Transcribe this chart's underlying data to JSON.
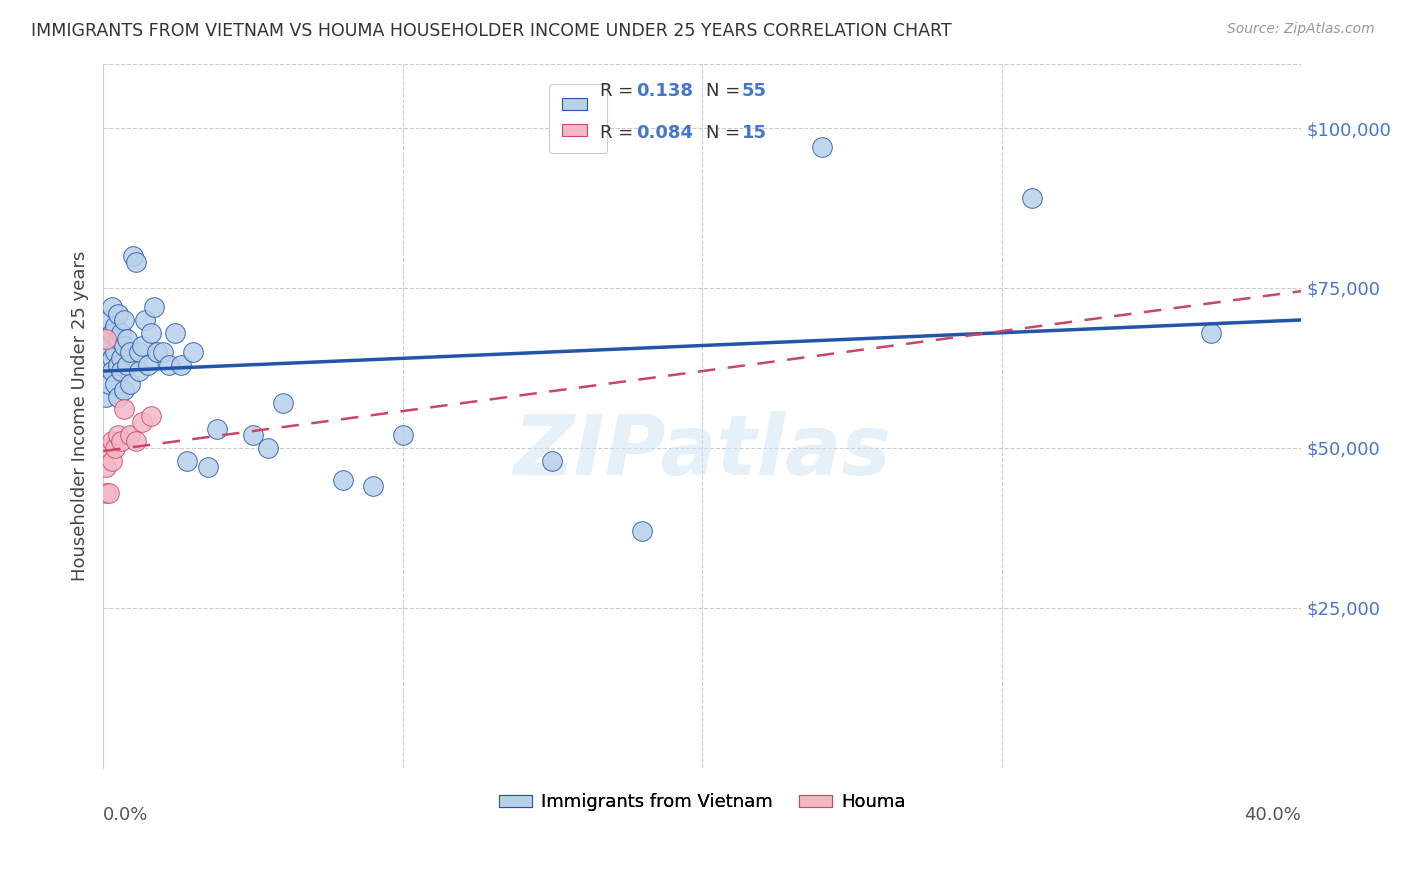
{
  "title": "IMMIGRANTS FROM VIETNAM VS HOUMA HOUSEHOLDER INCOME UNDER 25 YEARS CORRELATION CHART",
  "source": "Source: ZipAtlas.com",
  "ylabel": "Householder Income Under 25 years",
  "xlim": [
    0.0,
    0.4
  ],
  "ylim": [
    0,
    110000
  ],
  "yticks": [
    25000,
    50000,
    75000,
    100000
  ],
  "ytick_labels": [
    "$25,000",
    "$50,000",
    "$75,000",
    "$100,000"
  ],
  "legend_label1": "Immigrants from Vietnam",
  "legend_label2": "Houma",
  "color_blue": "#b8d0ea",
  "color_pink": "#f2b8c6",
  "line_blue": "#2255aa",
  "line_pink": "#cc4466",
  "watermark": "ZIPatlas",
  "axis_color": "#4477cc",
  "blue_scatter_x": [
    0.001,
    0.001,
    0.002,
    0.002,
    0.002,
    0.003,
    0.003,
    0.003,
    0.003,
    0.004,
    0.004,
    0.004,
    0.005,
    0.005,
    0.005,
    0.005,
    0.006,
    0.006,
    0.006,
    0.007,
    0.007,
    0.007,
    0.008,
    0.008,
    0.009,
    0.009,
    0.01,
    0.011,
    0.012,
    0.012,
    0.013,
    0.014,
    0.015,
    0.016,
    0.017,
    0.018,
    0.02,
    0.022,
    0.024,
    0.026,
    0.028,
    0.03,
    0.035,
    0.038,
    0.05,
    0.055,
    0.06,
    0.08,
    0.09,
    0.1,
    0.15,
    0.18,
    0.24,
    0.31,
    0.37
  ],
  "blue_scatter_y": [
    63000,
    58000,
    66000,
    70000,
    60000,
    64000,
    68000,
    72000,
    62000,
    65000,
    69000,
    60000,
    63000,
    67000,
    71000,
    58000,
    64000,
    68000,
    62000,
    66000,
    70000,
    59000,
    63000,
    67000,
    65000,
    60000,
    80000,
    79000,
    65000,
    62000,
    66000,
    70000,
    63000,
    68000,
    72000,
    65000,
    65000,
    63000,
    68000,
    63000,
    48000,
    65000,
    47000,
    53000,
    52000,
    50000,
    57000,
    45000,
    44000,
    52000,
    48000,
    37000,
    97000,
    89000,
    68000
  ],
  "pink_scatter_x": [
    0.001,
    0.001,
    0.001,
    0.002,
    0.002,
    0.003,
    0.003,
    0.004,
    0.005,
    0.006,
    0.007,
    0.009,
    0.011,
    0.013,
    0.016
  ],
  "pink_scatter_y": [
    47000,
    43000,
    67000,
    50000,
    43000,
    48000,
    51000,
    50000,
    52000,
    51000,
    56000,
    52000,
    51000,
    54000,
    55000
  ],
  "blue_line_x0": 0.0,
  "blue_line_y0": 62000,
  "blue_line_x1": 0.4,
  "blue_line_y1": 70000,
  "pink_line_x0": 0.0,
  "pink_line_y0": 49500,
  "pink_line_x1": 0.4,
  "pink_line_y1": 74500
}
